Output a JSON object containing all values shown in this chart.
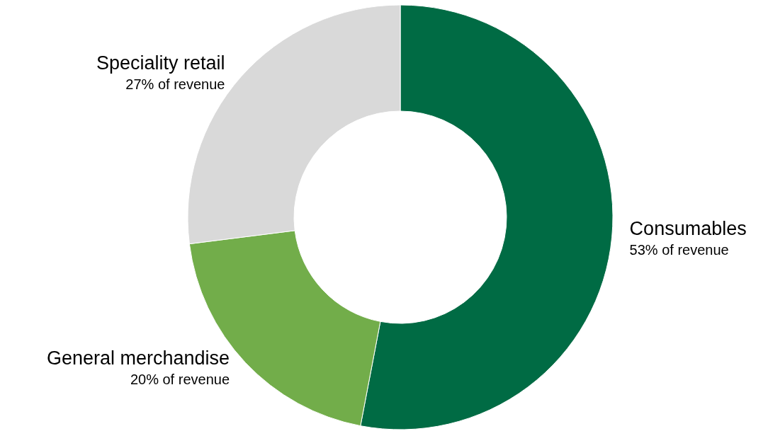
{
  "chart_data": {
    "type": "donut",
    "categories": [
      "Consumables",
      "General merchandise",
      "Speciality retail"
    ],
    "values": [
      53,
      20,
      27
    ],
    "value_labels": [
      "53% of revenue",
      "20% of revenue",
      "27% of revenue"
    ],
    "colors": [
      "#006b44",
      "#72ad4a",
      "#d9d9d9"
    ],
    "legend": false
  }
}
